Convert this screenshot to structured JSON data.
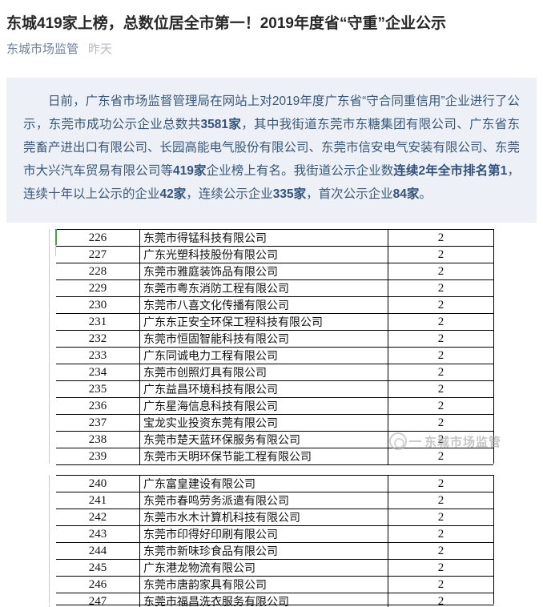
{
  "article": {
    "title": "东城419家上榜，总数位居全市第一！2019年度省“守重”企业公示",
    "account": "东城市场监管",
    "time": "昨天",
    "intro_segments": [
      {
        "text": "日前，广东省市场监督管理局在网站上对2019年度广东省“守合同重信用”企业进行了公示，东莞市成功公示企业总数共",
        "bold": false
      },
      {
        "text": "3581家",
        "bold": true
      },
      {
        "text": "，其中我街道东莞市东糖集团有限公司、广东省东莞畜产进出口有限公司、长园高能电气股份有限公司、东莞市信安电气安装有限公司、东莞市大兴汽车贸易有限公司等",
        "bold": false
      },
      {
        "text": "419家",
        "bold": true
      },
      {
        "text": "企业榜上有名。我街道公示企业数",
        "bold": false
      },
      {
        "text": "连续2年全市排名第1",
        "bold": true
      },
      {
        "text": "，连续十年以上公示的企业",
        "bold": false
      },
      {
        "text": "42家",
        "bold": true
      },
      {
        "text": "，连续公示企业",
        "bold": false
      },
      {
        "text": "335家",
        "bold": true
      },
      {
        "text": "，首次公示企业",
        "bold": false
      },
      {
        "text": "84家",
        "bold": true
      },
      {
        "text": "。",
        "bold": false
      }
    ]
  },
  "watermark": {
    "label": "东城市场监管"
  },
  "table": {
    "blocks": [
      {
        "rows": [
          {
            "no": "226",
            "name": "东莞市得锰科技有限公司",
            "count": "2"
          },
          {
            "no": "227",
            "name": "广东光塑科技股份有限公司",
            "count": "2"
          },
          {
            "no": "228",
            "name": "东莞市雅庭装饰品有限公司",
            "count": "2"
          },
          {
            "no": "229",
            "name": "东莞市粤东消防工程有限公司",
            "count": "2"
          },
          {
            "no": "230",
            "name": "东莞市八喜文化传播有限公司",
            "count": "2"
          },
          {
            "no": "231",
            "name": "广东东正安全环保工程科技有限公司",
            "count": "2"
          },
          {
            "no": "232",
            "name": "东莞市恒固智能科技有限公司",
            "count": "2"
          },
          {
            "no": "233",
            "name": "广东同诚电力工程有限公司",
            "count": "2"
          },
          {
            "no": "234",
            "name": "东莞市创照灯具有限公司",
            "count": "2"
          },
          {
            "no": "235",
            "name": "广东益昌环境科技有限公司",
            "count": "2"
          },
          {
            "no": "236",
            "name": "广东星海信息科技有限公司",
            "count": "2"
          },
          {
            "no": "237",
            "name": "宝龙实业投资东莞有限公司",
            "count": "2"
          },
          {
            "no": "238",
            "name": "东莞市楚天蓝环保服务有限公司",
            "count": "2"
          },
          {
            "no": "239",
            "name": "东莞市天明环保节能工程有限公司",
            "count": "2"
          }
        ]
      },
      {
        "rows": [
          {
            "no": "240",
            "name": "广东富皇建设有限公司",
            "count": "2"
          },
          {
            "no": "241",
            "name": "东莞市春鸣劳务派遣有限公司",
            "count": "2"
          },
          {
            "no": "242",
            "name": "东莞市水木计算机科技有限公司",
            "count": "2"
          },
          {
            "no": "243",
            "name": "东莞市印得好印刷有限公司",
            "count": "2"
          },
          {
            "no": "244",
            "name": "东莞市新味珍食品有限公司",
            "count": "2"
          },
          {
            "no": "245",
            "name": "广东港龙物流有限公司",
            "count": "2"
          },
          {
            "no": "246",
            "name": "东莞市唐韵家具有限公司",
            "count": "2"
          },
          {
            "no": "247",
            "name": "东莞市福昌洗衣服务有限公司",
            "count": "2"
          }
        ]
      }
    ]
  },
  "colors": {
    "quote_box_bg": "#edf1f7",
    "quote_text": "#3a5878",
    "account_link": "#6e7f9e",
    "timestamp": "#b6bac1",
    "table_border": "#000000",
    "gutter_line": "#c9c9c9",
    "green_marker": "#43a047",
    "watermark_gray": "#a3a3a3"
  }
}
